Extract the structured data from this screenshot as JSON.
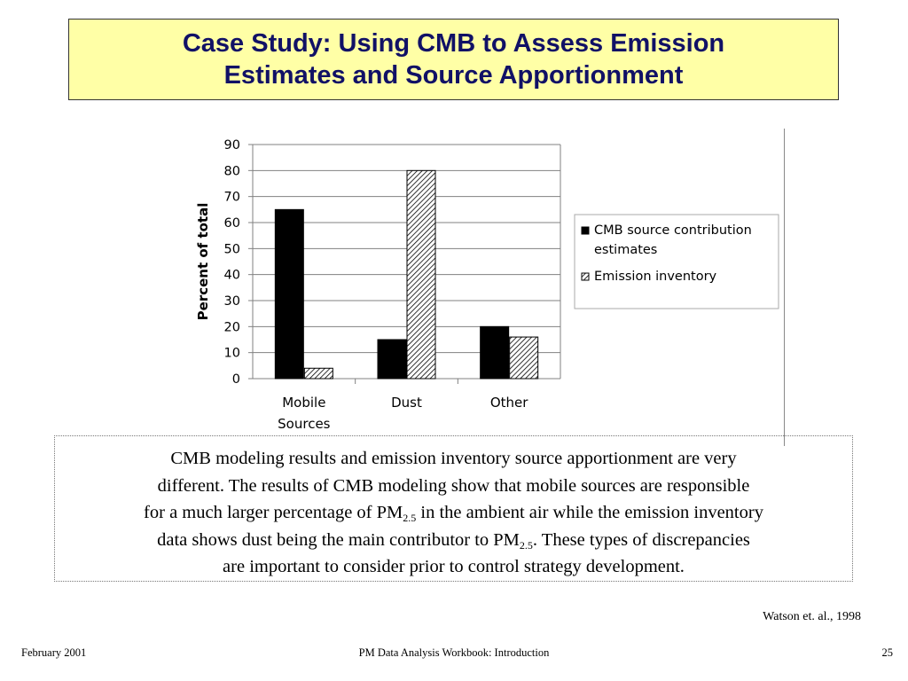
{
  "title": {
    "line1": "Case Study: Using CMB to Assess Emission",
    "line2": "Estimates and Source Apportionment"
  },
  "chart_data": {
    "type": "bar",
    "categories": [
      "Mobile Sources",
      "Dust",
      "Other"
    ],
    "category_lines": [
      [
        "Mobile",
        "Sources"
      ],
      [
        "Dust"
      ],
      [
        "Other"
      ]
    ],
    "series": [
      {
        "name": "CMB source contribution estimates",
        "legend_lines": [
          "CMB source contribution",
          "estimates"
        ],
        "values": [
          65,
          15,
          20
        ],
        "fill": "solid-black"
      },
      {
        "name": "Emission inventory",
        "legend_lines": [
          "Emission inventory"
        ],
        "values": [
          4,
          80,
          16
        ],
        "fill": "hatched"
      }
    ],
    "title": "",
    "xlabel": "",
    "ylabel": "Percent of total",
    "ylim": [
      0,
      90
    ],
    "yticks": [
      0,
      10,
      20,
      30,
      40,
      50,
      60,
      70,
      80,
      90
    ],
    "grid": true,
    "legend": "right"
  },
  "body": {
    "line1": "CMB modeling results and emission inventory source apportionment are very",
    "line2": "different.  The results of CMB modeling show that mobile sources are responsible",
    "line3a": "for a much larger percentage of PM",
    "sub1": "2.5",
    "line3b": " in the ambient air while the emission inventory",
    "line4a": "data shows dust being the main contributor to PM",
    "sub2": "2.5",
    "line4b": ".  These types of discrepancies",
    "line5": "are important to consider prior to control strategy development."
  },
  "citation": "Watson et. al., 1998",
  "footer": {
    "date": "February 2001",
    "center": "PM Data Analysis Workbook: Introduction",
    "page": "25"
  },
  "colors": {
    "title_bg": "#ffffa6",
    "title_text": "#111166",
    "bar_solid": "#000000"
  }
}
